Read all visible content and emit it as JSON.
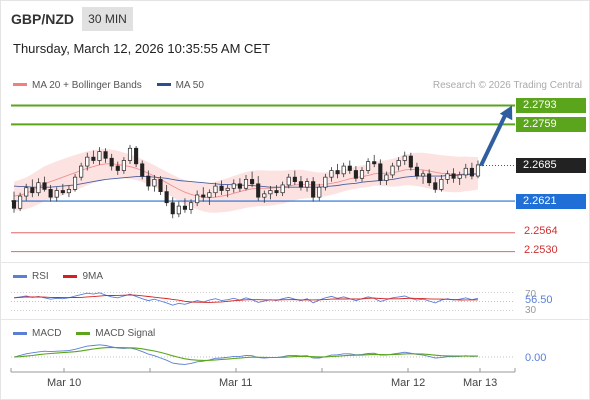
{
  "header": {
    "symbol": "GBP/NZD",
    "timeframe": "30 MIN"
  },
  "datetime": "Thursday, March 12, 2026 10:35:55 AM CET",
  "legend": {
    "items": [
      {
        "label": "MA 20 + Bollinger Bands",
        "color": "#f08080"
      },
      {
        "label": "MA 50",
        "color": "#2a4f8a"
      }
    ],
    "credit": "Research © 2026 Trading Central"
  },
  "colors": {
    "target": "#5aa51c",
    "current": "#222222",
    "pivot": "#1f6fd6",
    "support": "#e06666",
    "arrow": "#2f5f9e",
    "bb_fill": "#fde2e2",
    "ma20": "#f09090",
    "ma50": "#4a5fa0",
    "rsi": "#5b7fd6",
    "rsi_ma": "#d62020",
    "macd": "#5b7fd6",
    "macd_signal": "#5aa51c",
    "candle_up": "#2a7a2a",
    "candle_down": "#b02020"
  },
  "price_levels": [
    {
      "value": 2.2793,
      "label": "2.2793",
      "kind": "target"
    },
    {
      "value": 2.2759,
      "label": "2.2759",
      "kind": "target"
    },
    {
      "value": 2.2685,
      "label": "2.2685",
      "kind": "current"
    },
    {
      "value": 2.2621,
      "label": "2.2621",
      "kind": "pivot"
    },
    {
      "value": 2.2564,
      "label": "2.2564",
      "kind": "support"
    },
    {
      "value": 2.253,
      "label": "2.2530",
      "kind": "support"
    }
  ],
  "chart_data": {
    "type": "candlestick",
    "x_labels": [
      "Mar 10",
      "Mar 11",
      "Mar 12",
      "Mar 13"
    ],
    "ohlc": [
      [
        2.2622,
        2.2638,
        2.26,
        2.2608
      ],
      [
        2.2608,
        2.2636,
        2.2603,
        2.263
      ],
      [
        2.263,
        2.2652,
        2.2622,
        2.2645
      ],
      [
        2.2645,
        2.266,
        2.2628,
        2.2636
      ],
      [
        2.2636,
        2.2662,
        2.263,
        2.2654
      ],
      [
        2.2654,
        2.2665,
        2.2638,
        2.2642
      ],
      [
        2.2642,
        2.265,
        2.262,
        2.2628
      ],
      [
        2.2628,
        2.2646,
        2.262,
        2.264
      ],
      [
        2.264,
        2.2652,
        2.2632,
        2.2636
      ],
      [
        2.2636,
        2.2648,
        2.2628,
        2.2642
      ],
      [
        2.2642,
        2.267,
        2.2638,
        2.2664
      ],
      [
        2.2664,
        2.269,
        2.2658,
        2.2684
      ],
      [
        2.2684,
        2.2708,
        2.2676,
        2.27
      ],
      [
        2.27,
        2.2712,
        2.2688,
        2.2694
      ],
      [
        2.2694,
        2.2718,
        2.2686,
        2.271
      ],
      [
        2.271,
        2.2716,
        2.269,
        2.2698
      ],
      [
        2.2698,
        2.2706,
        2.2676,
        2.2684
      ],
      [
        2.2684,
        2.2692,
        2.2668,
        2.2676
      ],
      [
        2.2676,
        2.27,
        2.267,
        2.2694
      ],
      [
        2.2694,
        2.2722,
        2.2688,
        2.2716
      ],
      [
        2.2716,
        2.272,
        2.2682,
        2.2688
      ],
      [
        2.2688,
        2.2694,
        2.266,
        2.2666
      ],
      [
        2.2666,
        2.2676,
        2.264,
        2.2648
      ],
      [
        2.2648,
        2.2668,
        2.2638,
        2.266
      ],
      [
        2.266,
        2.2666,
        2.2632,
        2.2638
      ],
      [
        2.2638,
        2.265,
        2.2612,
        2.2618
      ],
      [
        2.2618,
        2.2628,
        2.259,
        2.2598
      ],
      [
        2.2598,
        2.262,
        2.2592,
        2.2612
      ],
      [
        2.2612,
        2.2626,
        2.26,
        2.2606
      ],
      [
        2.2606,
        2.2624,
        2.2598,
        2.2618
      ],
      [
        2.2618,
        2.264,
        2.2612,
        2.2632
      ],
      [
        2.2632,
        2.2646,
        2.262,
        2.2628
      ],
      [
        2.2628,
        2.2642,
        2.2614,
        2.2636
      ],
      [
        2.2636,
        2.2654,
        2.2628,
        2.2648
      ],
      [
        2.2648,
        2.2658,
        2.2632,
        2.264
      ],
      [
        2.264,
        2.265,
        2.2628,
        2.2644
      ],
      [
        2.2644,
        2.266,
        2.2636,
        2.2652
      ],
      [
        2.2652,
        2.2662,
        2.2638,
        2.2644
      ],
      [
        2.2644,
        2.2668,
        2.264,
        2.266
      ],
      [
        2.266,
        2.2674,
        2.2646,
        2.2652
      ],
      [
        2.2652,
        2.2666,
        2.2622,
        2.2628
      ],
      [
        2.2628,
        2.264,
        2.2618,
        2.2634
      ],
      [
        2.2634,
        2.2648,
        2.2624,
        2.264
      ],
      [
        2.264,
        2.265,
        2.263,
        2.2636
      ],
      [
        2.2636,
        2.2656,
        2.263,
        2.265
      ],
      [
        2.265,
        2.267,
        2.2644,
        2.2664
      ],
      [
        2.2664,
        2.2676,
        2.265,
        2.2656
      ],
      [
        2.2656,
        2.2666,
        2.264,
        2.2646
      ],
      [
        2.2646,
        2.2662,
        2.2638,
        2.2656
      ],
      [
        2.2656,
        2.2664,
        2.262,
        2.2628
      ],
      [
        2.2628,
        2.2652,
        2.2622,
        2.2646
      ],
      [
        2.2646,
        2.267,
        2.264,
        2.2664
      ],
      [
        2.2664,
        2.2682,
        2.2656,
        2.2676
      ],
      [
        2.2676,
        2.2688,
        2.2662,
        2.267
      ],
      [
        2.267,
        2.269,
        2.2664,
        2.2684
      ],
      [
        2.2684,
        2.2694,
        2.267,
        2.2676
      ],
      [
        2.2676,
        2.2684,
        2.2656,
        2.2662
      ],
      [
        2.2662,
        2.2682,
        2.2656,
        2.2676
      ],
      [
        2.2676,
        2.2698,
        2.267,
        2.2692
      ],
      [
        2.2692,
        2.2704,
        2.2682,
        2.2688
      ],
      [
        2.2688,
        2.2696,
        2.265,
        2.2658
      ],
      [
        2.2658,
        2.2674,
        2.265,
        2.2668
      ],
      [
        2.2668,
        2.269,
        2.2662,
        2.2684
      ],
      [
        2.2684,
        2.27,
        2.2676,
        2.2694
      ],
      [
        2.2694,
        2.271,
        2.2686,
        2.2702
      ],
      [
        2.2702,
        2.2708,
        2.2676,
        2.2682
      ],
      [
        2.2682,
        2.269,
        2.266,
        2.2666
      ],
      [
        2.2666,
        2.2676,
        2.2652,
        2.267
      ],
      [
        2.267,
        2.2678,
        2.2648,
        2.2654
      ],
      [
        2.2654,
        2.2664,
        2.2636,
        2.2642
      ],
      [
        2.2642,
        2.2668,
        2.2638,
        2.266
      ],
      [
        2.266,
        2.2676,
        2.2652,
        2.267
      ],
      [
        2.267,
        2.268,
        2.2654,
        2.2662
      ],
      [
        2.2662,
        2.2674,
        2.265,
        2.2668
      ],
      [
        2.2668,
        2.2688,
        2.2662,
        2.268
      ],
      [
        2.268,
        2.269,
        2.266,
        2.2666
      ],
      [
        2.2666,
        2.2694,
        2.2662,
        2.2686
      ]
    ],
    "ma20": [
      2.263,
      2.2632,
      2.2635,
      2.264,
      2.2646,
      2.2652,
      2.2656,
      2.266,
      2.2664,
      2.2668,
      2.2672,
      2.2676,
      2.268,
      2.2683,
      2.2686,
      2.2688,
      2.2688,
      2.2687,
      2.2685,
      2.2683,
      2.268,
      2.2676,
      2.2671,
      2.2666,
      2.266,
      2.2654,
      2.2648,
      2.2642,
      2.2637,
      2.2633,
      2.263,
      2.2628,
      2.2627,
      2.2628,
      2.263,
      2.2632,
      2.2635,
      2.2638,
      2.2641,
      2.2643,
      2.2644,
      2.2644,
      2.2644,
      2.2645,
      2.2646,
      2.2648,
      2.265,
      2.2651,
      2.2651,
      2.265,
      2.265,
      2.2651,
      2.2653,
      2.2655,
      2.2658,
      2.2661,
      2.2663,
      2.2665,
      2.2667,
      2.267,
      2.2671,
      2.2671,
      2.2672,
      2.2674,
      2.2677,
      2.2678,
      2.2678,
      2.2677,
      2.2675,
      2.2673,
      2.2671,
      2.267,
      2.2669,
      2.2669,
      2.267,
      2.267,
      2.2671
    ],
    "ma50": [
      2.2648,
      2.2647,
      2.2647,
      2.2646,
      2.2646,
      2.2646,
      2.2646,
      2.2647,
      2.2648,
      2.2649,
      2.265,
      2.2652,
      2.2654,
      2.2656,
      2.2658,
      2.266,
      2.2661,
      2.2662,
      2.2663,
      2.2664,
      2.2665,
      2.2665,
      2.2665,
      2.2664,
      2.2663,
      2.2662,
      2.266,
      2.2658,
      2.2657,
      2.2656,
      2.2655,
      2.2654,
      2.2653,
      2.2652,
      2.2651,
      2.2651,
      2.265,
      2.265,
      2.2649,
      2.2649,
      2.2648,
      2.2647,
      2.2646,
      2.2646,
      2.2646,
      2.2646,
      2.2646,
      2.2646,
      2.2646,
      2.2646,
      2.2646,
      2.2647,
      2.2648,
      2.2649,
      2.2651,
      2.2652,
      2.2653,
      2.2655,
      2.2656,
      2.2657,
      2.2658,
      2.2659,
      2.266,
      2.2662,
      2.2664,
      2.2665,
      2.2666,
      2.2666,
      2.2666,
      2.2666,
      2.2666,
      2.2667,
      2.2667,
      2.2668,
      2.2669,
      2.2669,
      2.267
    ],
    "bb_width": 0.0026,
    "arrow": {
      "from_price": 2.2685,
      "to_price": 2.2793
    },
    "rsi": {
      "legend": [
        "RSI",
        "9MA"
      ],
      "levels": [
        {
          "value": 70,
          "label": "70"
        },
        {
          "value": 30,
          "label": "30"
        }
      ],
      "current_label": "56.50",
      "values": [
        58,
        60,
        62,
        59,
        61,
        58,
        55,
        57,
        56,
        58,
        62,
        65,
        68,
        66,
        69,
        64,
        60,
        58,
        62,
        66,
        61,
        56,
        52,
        55,
        51,
        47,
        42,
        46,
        44,
        48,
        52,
        49,
        53,
        56,
        52,
        54,
        57,
        53,
        58,
        54,
        48,
        51,
        54,
        52,
        56,
        59,
        55,
        52,
        56,
        47,
        53,
        58,
        61,
        57,
        60,
        56,
        52,
        56,
        60,
        57,
        50,
        54,
        58,
        60,
        62,
        57,
        53,
        55,
        51,
        47,
        53,
        56,
        53,
        55,
        58,
        54,
        57
      ]
    },
    "macd": {
      "legend": [
        "MACD",
        "MACD Signal"
      ],
      "current_label": "0.00",
      "values": [
        0.0,
        0.5,
        1.0,
        1.3,
        1.6,
        1.8,
        1.7,
        1.8,
        1.9,
        2.0,
        2.4,
        2.9,
        3.4,
        3.6,
        3.8,
        3.6,
        3.2,
        2.8,
        2.7,
        2.8,
        2.4,
        1.7,
        0.9,
        0.4,
        -0.3,
        -1.0,
        -1.9,
        -2.2,
        -2.3,
        -2.0,
        -1.5,
        -1.3,
        -0.9,
        -0.4,
        -0.3,
        -0.1,
        0.2,
        0.2,
        0.5,
        0.4,
        -0.2,
        -0.3,
        -0.2,
        -0.2,
        0.1,
        0.5,
        0.5,
        0.3,
        0.4,
        -0.3,
        -0.3,
        0.1,
        0.6,
        0.7,
        1.0,
        1.0,
        0.7,
        0.8,
        1.1,
        1.2,
        0.6,
        0.6,
        0.9,
        1.2,
        1.5,
        1.2,
        0.8,
        0.6,
        0.2,
        -0.3,
        -0.2,
        0.1,
        0.1,
        0.2,
        0.4,
        0.2,
        0.3
      ]
    }
  }
}
